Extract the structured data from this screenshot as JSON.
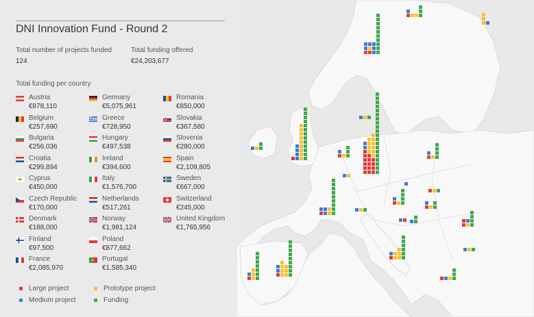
{
  "title": "DNI Innovation Fund - Round 2",
  "stats": {
    "projects_label": "Total number of projects funded",
    "projects_value": "124",
    "funding_label": "Total funding offered",
    "funding_value": "€24,203,677"
  },
  "per_country_label": "Total funding per country",
  "colors": {
    "large": "#e53935",
    "prototype": "#fbc02d",
    "medium": "#3d7bd8",
    "funding": "#3ea94b"
  },
  "countries": [
    {
      "name": "Austria",
      "value": "€878,110",
      "flag": "austria-flag-icon"
    },
    {
      "name": "Belgium",
      "value": "€257,690",
      "flag": "belgium-flag-icon"
    },
    {
      "name": "Bulgaria",
      "value": "€256,036",
      "flag": "bulgaria-flag-icon"
    },
    {
      "name": "Croatia",
      "value": "€299,894",
      "flag": "croatia-flag-icon"
    },
    {
      "name": "Cyprus",
      "value": "€450,000",
      "flag": "cyprus-flag-icon"
    },
    {
      "name": "Czech Republic",
      "value": "€170,000",
      "flag": "czech-flag-icon"
    },
    {
      "name": "Denmark",
      "value": "€188,000",
      "flag": "denmark-flag-icon"
    },
    {
      "name": "Finland",
      "value": "€97,500",
      "flag": "finland-flag-icon"
    },
    {
      "name": "France",
      "value": "€2,085,970",
      "flag": "france-flag-icon"
    },
    {
      "name": "Germany",
      "value": "€5,075,961",
      "flag": "germany-flag-icon"
    },
    {
      "name": "Greece",
      "value": "€728,950",
      "flag": "greece-flag-icon"
    },
    {
      "name": "Hungary",
      "value": "€497,538",
      "flag": "hungary-flag-icon"
    },
    {
      "name": "Ireland",
      "value": "€394,600",
      "flag": "ireland-flag-icon"
    },
    {
      "name": "Italy",
      "value": "€1,576,700",
      "flag": "italy-flag-icon"
    },
    {
      "name": "Netherlands",
      "value": "€517,261",
      "flag": "netherlands-flag-icon"
    },
    {
      "name": "Norway",
      "value": "€1,981,124",
      "flag": "norway-flag-icon"
    },
    {
      "name": "Poland",
      "value": "€877,662",
      "flag": "poland-flag-icon"
    },
    {
      "name": "Portugal",
      "value": "€1,585,340",
      "flag": "portugal-flag-icon"
    },
    {
      "name": "Romania",
      "value": "€850,000",
      "flag": "romania-flag-icon"
    },
    {
      "name": "Slovakia",
      "value": "€367,580",
      "flag": "slovakia-flag-icon"
    },
    {
      "name": "Slovenia",
      "value": "€280,000",
      "flag": "slovenia-flag-icon"
    },
    {
      "name": "Spain",
      "value": "€2,109,805",
      "flag": "spain-flag-icon"
    },
    {
      "name": "Sweden",
      "value": "€667,000",
      "flag": "sweden-flag-icon"
    },
    {
      "name": "Switzerland",
      "value": "€245,000",
      "flag": "switzerland-flag-icon"
    },
    {
      "name": "United Kingdom",
      "value": "€1,765,956",
      "flag": "uk-flag-icon"
    }
  ],
  "legend": {
    "large": "Large project",
    "prototype": "Prototype project",
    "medium": "Medium project",
    "funding": "Funding"
  }
}
